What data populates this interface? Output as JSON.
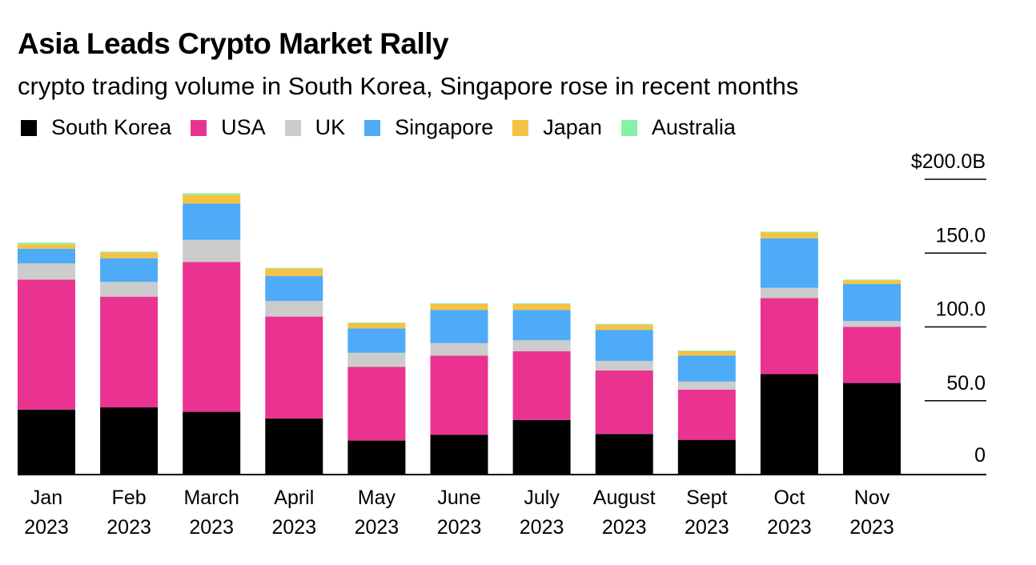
{
  "title": "Asia Leads Crypto Market Rally",
  "subtitle": "crypto trading volume in South Korea, Singapore rose in recent months",
  "chart_data": {
    "type": "bar",
    "stacked": true,
    "title": "Asia Leads Crypto Market Rally",
    "subtitle": "crypto trading volume in South Korea, Singapore rose in recent months",
    "categories": [
      [
        "Jan",
        "2023"
      ],
      [
        "Feb",
        "2023"
      ],
      [
        "March",
        "2023"
      ],
      [
        "April",
        "2023"
      ],
      [
        "May",
        "2023"
      ],
      [
        "June",
        "2023"
      ],
      [
        "July",
        "2023"
      ],
      [
        "August",
        "2023"
      ],
      [
        "Sept",
        "2023"
      ],
      [
        "Oct",
        "2023"
      ],
      [
        "Nov",
        "2023"
      ]
    ],
    "series": [
      {
        "name": "South Korea",
        "color": "#000000",
        "values": [
          44,
          45.5,
          42.5,
          38,
          23,
          27,
          37,
          27.5,
          23.5,
          68,
          62
        ]
      },
      {
        "name": "USA",
        "color": "#ea3391",
        "values": [
          88,
          75,
          101.5,
          69,
          50,
          53.5,
          46.5,
          43,
          34,
          51.5,
          38
        ]
      },
      {
        "name": "UK",
        "color": "#cccccc",
        "values": [
          11,
          10,
          15,
          10.5,
          9.5,
          8.5,
          7.5,
          6.5,
          5.5,
          7,
          4
        ]
      },
      {
        "name": "Singapore",
        "color": "#4dabf7",
        "values": [
          10,
          16,
          24.5,
          17,
          16.5,
          22.5,
          20.5,
          21,
          17.5,
          33.5,
          25
        ]
      },
      {
        "name": "Japan",
        "color": "#f5c242",
        "values": [
          3,
          4,
          6,
          5,
          3.5,
          4,
          4,
          3.5,
          3,
          4,
          2.5
        ]
      },
      {
        "name": "Australia",
        "color": "#86f0a8",
        "values": [
          1,
          0.5,
          1,
          0.5,
          0.5,
          0.5,
          0.5,
          0.5,
          0.5,
          0.5,
          0.5
        ]
      }
    ],
    "yticks": [
      "$200.0B",
      "150.0",
      "100.0",
      "50.0",
      "0"
    ],
    "ytick_values": [
      200,
      150,
      100,
      50,
      0
    ],
    "ylim": [
      0,
      200
    ],
    "axis_position": "right",
    "legend_position": "top-left"
  }
}
